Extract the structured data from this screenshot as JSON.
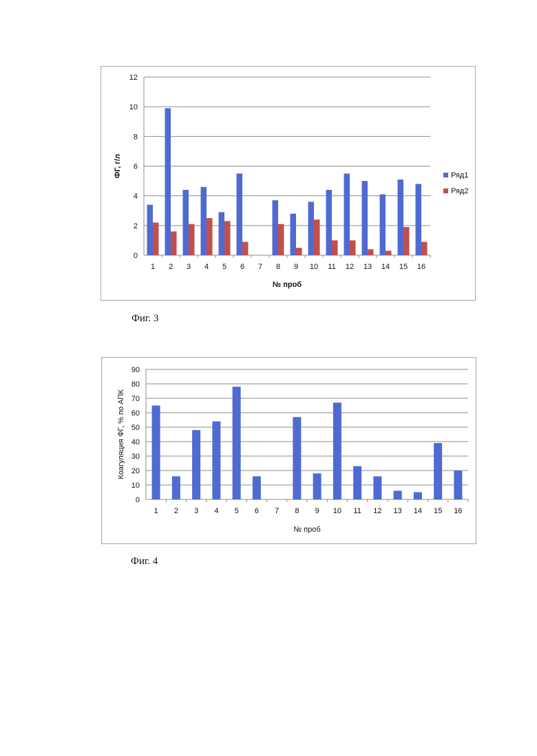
{
  "figures": [
    {
      "caption": "Фиг. 3",
      "chart_data": {
        "type": "bar",
        "categories": [
          "1",
          "2",
          "3",
          "4",
          "5",
          "6",
          "7",
          "8",
          "9",
          "10",
          "11",
          "12",
          "13",
          "14",
          "15",
          "16"
        ],
        "series": [
          {
            "name": "Ряд1",
            "color": "#4f6bd1",
            "values": [
              3.4,
              9.9,
              4.4,
              4.6,
              2.9,
              5.5,
              0,
              3.7,
              2.8,
              3.6,
              4.4,
              5.5,
              5.0,
              4.1,
              5.1,
              4.8
            ]
          },
          {
            "name": "Ряд2",
            "color": "#c0504d",
            "values": [
              2.2,
              1.6,
              2.1,
              2.5,
              2.3,
              0.9,
              0,
              2.1,
              0.5,
              2.4,
              1.0,
              1.0,
              0.4,
              0.3,
              1.9,
              0.9
            ]
          }
        ],
        "xlabel": "№ проб",
        "ylabel": "ФГ, г/л",
        "ylim": [
          0,
          12
        ],
        "yticks": [
          0,
          2,
          4,
          6,
          8,
          10,
          12
        ],
        "grid": true,
        "legend": "right"
      }
    },
    {
      "caption": "Фиг. 4",
      "chart_data": {
        "type": "bar",
        "categories": [
          "1",
          "2",
          "3",
          "4",
          "5",
          "6",
          "7",
          "8",
          "9",
          "10",
          "11",
          "12",
          "13",
          "14",
          "15",
          "16"
        ],
        "series": [
          {
            "color": "#4f6bd1",
            "values": [
              65,
              16,
              48,
              54,
              78,
              16,
              0,
              57,
              18,
              67,
              23,
              16,
              6,
              5,
              39,
              20
            ]
          }
        ],
        "xlabel": "№ проб",
        "ylabel": "Коагуляция ФГ, % по АПК",
        "ylim": [
          0,
          90
        ],
        "yticks": [
          0,
          10,
          20,
          30,
          40,
          50,
          60,
          70,
          80,
          90
        ],
        "grid": true,
        "legend": "none"
      }
    }
  ]
}
